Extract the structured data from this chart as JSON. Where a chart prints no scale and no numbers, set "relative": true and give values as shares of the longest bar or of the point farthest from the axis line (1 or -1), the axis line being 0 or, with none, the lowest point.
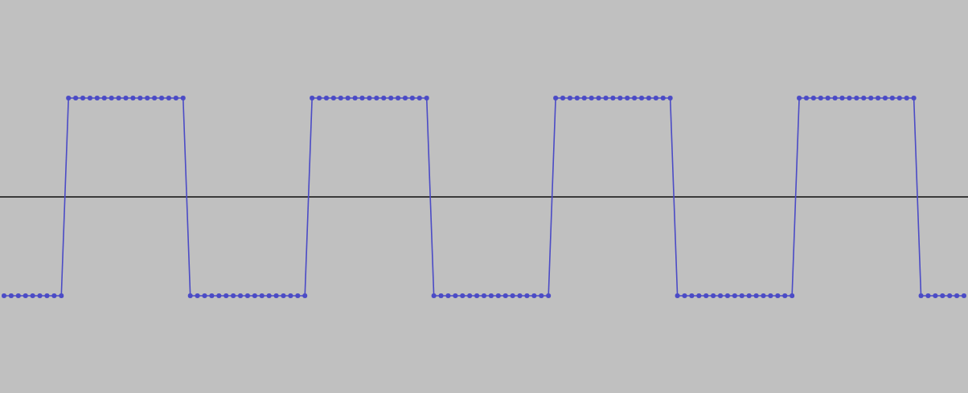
{
  "chart_data": {
    "type": "line",
    "relative": true,
    "marker": "circle",
    "line_style": "solid",
    "categories": [
      null,
      null,
      null,
      null,
      null,
      null,
      null,
      null,
      null,
      null,
      null,
      null,
      null,
      null,
      null,
      null,
      null,
      null,
      null,
      null,
      null,
      null,
      null,
      null,
      null,
      null,
      null,
      null,
      null,
      null,
      null,
      null,
      null,
      null,
      null,
      null,
      null,
      null,
      null,
      null,
      null,
      null,
      null,
      null,
      null,
      null,
      null,
      null,
      null,
      null,
      null,
      null,
      null,
      null,
      null,
      null,
      null,
      null,
      null,
      null,
      null,
      null,
      null,
      null,
      null,
      null,
      null,
      null,
      null,
      null,
      null,
      null,
      null,
      null,
      null,
      null,
      null,
      null,
      null,
      null,
      null,
      null,
      null,
      null,
      null,
      null,
      null,
      null,
      null,
      null,
      null,
      null,
      null,
      null,
      null,
      null,
      null,
      null,
      null,
      null,
      null,
      null,
      null,
      null,
      null,
      null,
      null,
      null,
      null,
      null,
      null,
      null,
      null,
      null,
      null,
      null,
      null,
      null,
      null,
      null,
      null,
      null,
      null,
      null,
      null,
      null,
      null,
      null,
      null,
      null,
      null,
      null,
      null,
      null,
      null
    ],
    "series": [
      {
        "color": "#4b4bc6",
        "values": [
          -1,
          -1,
          -1,
          -1,
          -1,
          -1,
          -1,
          -1,
          -1,
          1,
          1,
          1,
          1,
          1,
          1,
          1,
          1,
          1,
          1,
          1,
          1,
          1,
          1,
          1,
          1,
          1,
          -1,
          -1,
          -1,
          -1,
          -1,
          -1,
          -1,
          -1,
          -1,
          -1,
          -1,
          -1,
          -1,
          -1,
          -1,
          -1,
          -1,
          1,
          1,
          1,
          1,
          1,
          1,
          1,
          1,
          1,
          1,
          1,
          1,
          1,
          1,
          1,
          1,
          1,
          -1,
          -1,
          -1,
          -1,
          -1,
          -1,
          -1,
          -1,
          -1,
          -1,
          -1,
          -1,
          -1,
          -1,
          -1,
          -1,
          -1,
          1,
          1,
          1,
          1,
          1,
          1,
          1,
          1,
          1,
          1,
          1,
          1,
          1,
          1,
          1,
          1,
          1,
          -1,
          -1,
          -1,
          -1,
          -1,
          -1,
          -1,
          -1,
          -1,
          -1,
          -1,
          -1,
          -1,
          -1,
          -1,
          -1,
          -1,
          1,
          1,
          1,
          1,
          1,
          1,
          1,
          1,
          1,
          1,
          1,
          1,
          1,
          1,
          1,
          1,
          1,
          -1,
          -1,
          -1,
          -1,
          -1,
          -1,
          -1
        ]
      }
    ]
  }
}
